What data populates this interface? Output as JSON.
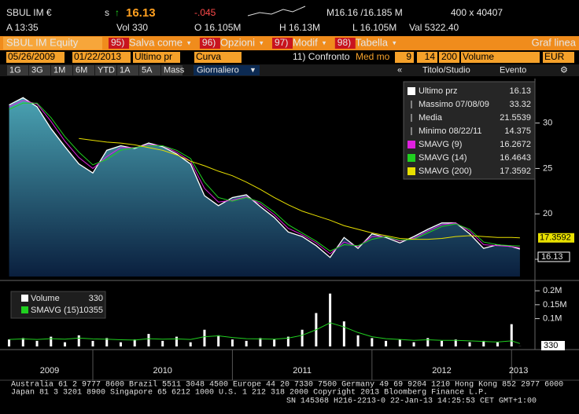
{
  "quote": {
    "ticker": "SBUL IM €",
    "flag": "s",
    "arrow": "↑",
    "last": "16.13",
    "change": "-.045",
    "bid_ask": "M16.16 /16.185 M",
    "size": "400 x 40407",
    "time": "A 13:35",
    "vol": "Vol 330",
    "open": "O 16.105M",
    "high": "H 16.13M",
    "low": "L 16.105M",
    "val": "Val 5322.40"
  },
  "toolbar": {
    "security": "SBUL IM Equity",
    "buttons": [
      {
        "key": "95)",
        "label": "Salva come"
      },
      {
        "key": "96)",
        "label": "Opzioni"
      },
      {
        "key": "97)",
        "label": "Modif"
      },
      {
        "key": "98)",
        "label": "Tabella"
      }
    ],
    "mode": "Graf linea"
  },
  "controls": {
    "start": "05/26/2009",
    "end": "01/22/2013",
    "field": "Ultimo pr",
    "style": "Curva",
    "compare": "11) Confronto",
    "average": "Med mo",
    "periods": [
      "9",
      "14",
      "200"
    ],
    "lower": "Volume",
    "currency": "EUR"
  },
  "ranges": {
    "buttons": [
      "1G",
      "3G",
      "1M",
      "6M",
      "YTD",
      "1A",
      "5A",
      "Mass"
    ],
    "frequency": "Giornaliero",
    "study": "Titolo/Studio",
    "event": "Evento"
  },
  "chart_data": [
    {
      "type": "line",
      "x": [
        2009.4,
        2009.5,
        2009.6,
        2009.7,
        2009.8,
        2009.9,
        2010.0,
        2010.1,
        2010.2,
        2010.3,
        2010.4,
        2010.5,
        2010.6,
        2010.7,
        2010.8,
        2010.9,
        2011.0,
        2011.1,
        2011.2,
        2011.3,
        2011.4,
        2011.5,
        2011.6,
        2011.7,
        2011.8,
        2011.9,
        2012.0,
        2012.1,
        2012.2,
        2012.3,
        2012.4,
        2012.5,
        2012.6,
        2012.7,
        2012.8,
        2012.9,
        2013.0,
        2013.06
      ],
      "xlim": [
        2009.38,
        2013.1
      ],
      "ylim": [
        13.1,
        34.9
      ],
      "yticks": [
        15,
        20,
        25,
        30
      ],
      "series": [
        {
          "name": "Ultimo prz",
          "color": "#ffffff",
          "area_color": "#3f93a6",
          "values": [
            32.0,
            32.8,
            31.8,
            29.4,
            27.4,
            25.5,
            24.5,
            27,
            27.5,
            27.2,
            27.8,
            27.4,
            26.6,
            25.5,
            22,
            20.9,
            21.8,
            22.1,
            20.8,
            19.6,
            18,
            17.5,
            16.5,
            15.2,
            17.4,
            16.2,
            17.8,
            17.4,
            16.8,
            17.5,
            18.3,
            19.0,
            19.0,
            17.8,
            16.2,
            16.6,
            16.4,
            16.13
          ]
        },
        {
          "name": "SMAVG (9)",
          "color": "#e020e0",
          "values": [
            31.8,
            32.5,
            32.1,
            30.2,
            28.0,
            26.2,
            25.0,
            26.3,
            27.3,
            27.3,
            27.6,
            27.5,
            26.8,
            25.8,
            22.8,
            21.3,
            21.5,
            21.9,
            21.1,
            19.9,
            18.4,
            17.7,
            16.8,
            15.6,
            16.9,
            16.4,
            17.5,
            17.5,
            17.0,
            17.3,
            18.1,
            18.8,
            19.0,
            18.1,
            16.6,
            16.5,
            16.4,
            16.2672
          ]
        },
        {
          "name": "SMAVG (14)",
          "color": "#20d020",
          "values": [
            31.5,
            32.2,
            32.2,
            30.6,
            28.5,
            26.8,
            25.4,
            26.0,
            27.0,
            27.3,
            27.5,
            27.5,
            27.0,
            26.1,
            23.5,
            21.8,
            21.4,
            21.8,
            21.3,
            20.2,
            18.8,
            17.9,
            17.0,
            15.9,
            16.6,
            16.5,
            17.2,
            17.5,
            17.1,
            17.2,
            17.9,
            18.6,
            18.9,
            18.3,
            16.9,
            16.6,
            16.5,
            16.4643
          ]
        },
        {
          "name": "SMAVG (200)",
          "color": "#e8e000",
          "values": [
            null,
            null,
            null,
            null,
            null,
            28.3,
            28.1,
            27.9,
            27.8,
            27.6,
            27.3,
            27.0,
            26.5,
            25.8,
            25.3,
            24.7,
            24.2,
            23.5,
            22.7,
            21.8,
            21.0,
            20.3,
            19.8,
            19.3,
            18.7,
            18.3,
            17.9,
            17.6,
            17.3,
            17.2,
            17.2,
            17.3,
            17.5,
            17.6,
            17.5,
            17.4,
            17.4,
            17.3592
          ]
        }
      ],
      "stats": [
        {
          "label": "Massimo 07/08/09",
          "value": 33.32
        },
        {
          "label": "Media",
          "value": 21.5539
        },
        {
          "label": "Minimo 08/22/11",
          "value": 14.375
        }
      ]
    },
    {
      "type": "bar",
      "x": [
        2009.4,
        2009.5,
        2009.6,
        2009.7,
        2009.8,
        2009.9,
        2010.0,
        2010.1,
        2010.2,
        2010.3,
        2010.4,
        2010.5,
        2010.6,
        2010.7,
        2010.8,
        2010.9,
        2011.0,
        2011.1,
        2011.2,
        2011.3,
        2011.4,
        2011.5,
        2011.6,
        2011.7,
        2011.8,
        2011.9,
        2012.0,
        2012.1,
        2012.2,
        2012.3,
        2012.4,
        2012.5,
        2012.6,
        2012.7,
        2012.8,
        2012.9,
        2013.0,
        2013.06
      ],
      "xlim": [
        2009.38,
        2013.1
      ],
      "xticks": [
        2009,
        2010,
        2011,
        2012,
        2013
      ],
      "ylim": [
        0,
        223000
      ],
      "yticks": [
        {
          "value": 100000,
          "label": "0.1M"
        },
        {
          "value": 150000,
          "label": "0.15M"
        },
        {
          "value": 200000,
          "label": "0.2M"
        }
      ],
      "series": [
        {
          "name": "Volume",
          "color": "#ffffff",
          "values": [
            25000,
            30000,
            20000,
            35000,
            15000,
            40000,
            20000,
            30000,
            15000,
            25000,
            45000,
            20000,
            35000,
            15000,
            60000,
            40000,
            25000,
            20000,
            30000,
            25000,
            35000,
            60000,
            120000,
            190000,
            90000,
            40000,
            30000,
            20000,
            25000,
            15000,
            30000,
            20000,
            25000,
            15000,
            20000,
            15000,
            80000,
            330
          ]
        },
        {
          "name": "SMAVG (15)",
          "color": "#20d020",
          "type": "line",
          "values": [
            25000,
            27000,
            25000,
            28000,
            26000,
            30000,
            27000,
            26000,
            24000,
            23000,
            28000,
            26000,
            27000,
            25000,
            35000,
            38000,
            32000,
            28000,
            27000,
            26000,
            30000,
            40000,
            60000,
            85000,
            70000,
            50000,
            35000,
            28000,
            25000,
            22000,
            24000,
            22000,
            22000,
            20000,
            18000,
            16000,
            20000,
            10355
          ]
        }
      ]
    }
  ],
  "footer": [
    "Australia 61 2 9777 8600 Brazil 5511 3048 4500 Europe 44 20 7330 7500 Germany 49 69 9204 1210 Hong Kong 852 2977 6000",
    "Japan 81 3 3201 8900       Singapore 65 6212 1000       U.S. 1 212 318 2000       Copyright 2013 Bloomberg Finance L.P.",
    "SN 145368 H216-2213-0 22-Jan-13 14:25:53 CET  GMT+1:00"
  ]
}
